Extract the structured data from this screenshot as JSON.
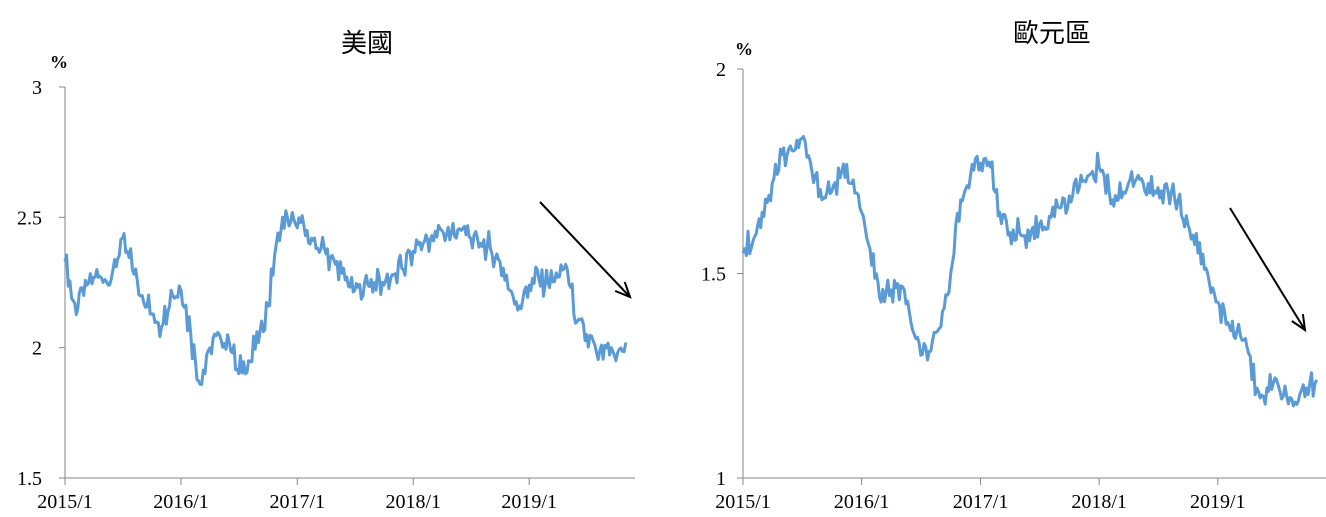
{
  "chart_data": [
    {
      "type": "line",
      "title": "美國",
      "unit": "%",
      "ylim": [
        1.5,
        3
      ],
      "y_ticks": [
        1.5,
        2,
        2.5,
        3
      ],
      "y_tick_labels": [
        "1.5",
        "2",
        "2.5",
        "3"
      ],
      "x_ticks": [
        "2015-01-01",
        "2016-01-01",
        "2017-01-01",
        "2018-01-01",
        "2019-01-01"
      ],
      "x_tick_labels": [
        "2015/1",
        "2016/1",
        "2017/1",
        "2018/1",
        "2019/1"
      ],
      "xlim": [
        "2015-01-01",
        "2019-11-30"
      ],
      "grid": false,
      "line_color": "#5b9bd5",
      "series": [
        {
          "x": [
            "2015-01-01",
            "2015-02-01",
            "2015-03-01",
            "2015-04-01",
            "2015-05-01",
            "2015-06-01",
            "2015-07-01",
            "2015-08-01",
            "2015-09-01",
            "2015-10-01",
            "2015-11-01",
            "2015-12-01",
            "2016-01-01",
            "2016-02-01",
            "2016-03-01",
            "2016-04-01",
            "2016-05-01",
            "2016-06-01",
            "2016-07-01",
            "2016-08-01",
            "2016-09-01",
            "2016-10-01",
            "2016-11-01",
            "2016-12-01",
            "2017-01-01",
            "2017-02-01",
            "2017-03-01",
            "2017-04-01",
            "2017-05-01",
            "2017-06-01",
            "2017-07-01",
            "2017-08-01",
            "2017-09-01",
            "2017-10-01",
            "2017-11-01",
            "2017-12-01",
            "2018-01-01",
            "2018-02-01",
            "2018-03-01",
            "2018-04-01",
            "2018-05-01",
            "2018-06-01",
            "2018-07-01",
            "2018-08-01",
            "2018-09-01",
            "2018-10-01",
            "2018-11-01",
            "2018-12-01",
            "2019-01-01",
            "2019-02-01",
            "2019-03-01",
            "2019-04-01",
            "2019-05-01",
            "2019-06-01",
            "2019-07-01",
            "2019-08-01",
            "2019-09-01",
            "2019-10-01",
            "2019-11-01"
          ],
          "values": [
            2.33,
            2.17,
            2.2,
            2.27,
            2.25,
            2.3,
            2.42,
            2.3,
            2.2,
            2.13,
            2.08,
            2.22,
            2.22,
            2.05,
            1.86,
            2.0,
            2.05,
            2.02,
            1.9,
            1.95,
            2.02,
            2.16,
            2.44,
            2.5,
            2.46,
            2.45,
            2.38,
            2.36,
            2.32,
            2.26,
            2.22,
            2.25,
            2.25,
            2.24,
            2.28,
            2.3,
            2.37,
            2.4,
            2.43,
            2.45,
            2.44,
            2.45,
            2.42,
            2.4,
            2.38,
            2.33,
            2.22,
            2.16,
            2.24,
            2.26,
            2.25,
            2.27,
            2.3,
            2.1,
            2.05,
            1.98,
            2.0,
            1.95,
            2.02
          ]
        }
      ]
    },
    {
      "type": "line",
      "title": "歐元區",
      "unit": "%",
      "ylim": [
        1,
        2
      ],
      "y_ticks": [
        1,
        1.5,
        2
      ],
      "y_tick_labels": [
        "1",
        "1.5",
        "2"
      ],
      "x_ticks": [
        "2015-01-01",
        "2016-01-01",
        "2017-01-01",
        "2018-01-01",
        "2019-01-01"
      ],
      "x_tick_labels": [
        "2015/1",
        "2016/1",
        "2017/1",
        "2018/1",
        "2019/1"
      ],
      "xlim": [
        "2015-01-01",
        "2019-11-30"
      ],
      "grid": false,
      "line_color": "#5b9bd5",
      "series": [
        {
          "x": [
            "2015-01-01",
            "2015-02-01",
            "2015-03-01",
            "2015-04-01",
            "2015-05-01",
            "2015-06-01",
            "2015-07-01",
            "2015-08-01",
            "2015-09-01",
            "2015-10-01",
            "2015-11-01",
            "2015-12-01",
            "2016-01-01",
            "2016-02-01",
            "2016-03-01",
            "2016-04-01",
            "2016-05-01",
            "2016-06-01",
            "2016-07-01",
            "2016-08-01",
            "2016-09-01",
            "2016-10-01",
            "2016-11-01",
            "2016-12-01",
            "2017-01-01",
            "2017-02-01",
            "2017-03-01",
            "2017-04-01",
            "2017-05-01",
            "2017-06-01",
            "2017-07-01",
            "2017-08-01",
            "2017-09-01",
            "2017-10-01",
            "2017-11-01",
            "2017-12-01",
            "2018-01-01",
            "2018-02-01",
            "2018-03-01",
            "2018-04-01",
            "2018-05-01",
            "2018-06-01",
            "2018-07-01",
            "2018-08-01",
            "2018-09-01",
            "2018-10-01",
            "2018-11-01",
            "2018-12-01",
            "2019-01-01",
            "2019-02-01",
            "2019-03-01",
            "2019-04-01",
            "2019-05-01",
            "2019-06-01",
            "2019-07-01",
            "2019-08-01",
            "2019-09-01",
            "2019-10-01",
            "2019-11-01"
          ],
          "values": [
            1.55,
            1.58,
            1.65,
            1.72,
            1.79,
            1.8,
            1.83,
            1.75,
            1.68,
            1.7,
            1.75,
            1.72,
            1.65,
            1.52,
            1.43,
            1.46,
            1.47,
            1.38,
            1.3,
            1.31,
            1.37,
            1.5,
            1.68,
            1.74,
            1.77,
            1.76,
            1.65,
            1.6,
            1.6,
            1.58,
            1.62,
            1.64,
            1.66,
            1.69,
            1.71,
            1.74,
            1.76,
            1.7,
            1.68,
            1.72,
            1.74,
            1.72,
            1.71,
            1.7,
            1.68,
            1.62,
            1.55,
            1.5,
            1.43,
            1.38,
            1.36,
            1.32,
            1.22,
            1.22,
            1.24,
            1.2,
            1.18,
            1.22,
            1.24
          ]
        }
      ]
    }
  ]
}
